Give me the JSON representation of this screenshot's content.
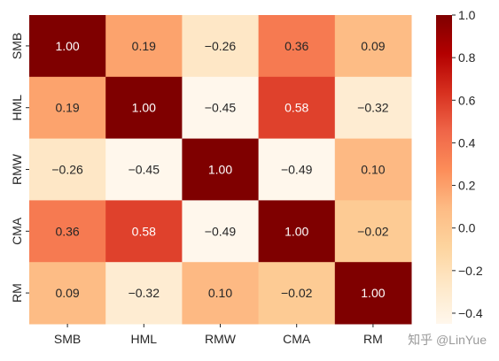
{
  "chart_data": {
    "type": "heatmap",
    "rows": [
      "SMB",
      "HML",
      "RMW",
      "CMA",
      "RM"
    ],
    "columns": [
      "SMB",
      "HML",
      "RMW",
      "CMA",
      "RM"
    ],
    "values": [
      [
        1.0,
        0.19,
        -0.26,
        0.36,
        0.09
      ],
      [
        0.19,
        1.0,
        -0.45,
        0.58,
        -0.32
      ],
      [
        -0.26,
        -0.45,
        1.0,
        -0.49,
        0.1
      ],
      [
        0.36,
        0.58,
        -0.49,
        1.0,
        -0.02
      ],
      [
        0.09,
        -0.32,
        0.1,
        -0.02,
        1.0
      ]
    ],
    "value_labels": [
      [
        "1.00",
        "0.19",
        "−0.26",
        "0.36",
        "0.09"
      ],
      [
        "0.19",
        "1.00",
        "−0.45",
        "0.58",
        "−0.32"
      ],
      [
        "−0.26",
        "−0.45",
        "1.00",
        "−0.49",
        "0.10"
      ],
      [
        "0.36",
        "0.58",
        "−0.49",
        "1.00",
        "−0.02"
      ],
      [
        "0.09",
        "−0.32",
        "0.10",
        "−0.02",
        "1.00"
      ]
    ],
    "colorbar": {
      "min": -0.45,
      "max": 1.0,
      "ticks": [
        1.0,
        0.8,
        0.6,
        0.4,
        0.2,
        0.0,
        -0.2,
        -0.4
      ],
      "tick_labels": [
        "1.0",
        "0.8",
        "0.6",
        "0.4",
        "0.2",
        "0.0",
        "−0.2",
        "−0.4"
      ],
      "colormap": "OrRd",
      "color_stops": [
        "#fff7ec",
        "#fee8c8",
        "#fdd49e",
        "#fdbb84",
        "#fc8d59",
        "#ef6548",
        "#d7301f",
        "#b30000",
        "#7f0000"
      ]
    },
    "title": "",
    "xlabel": "",
    "ylabel": ""
  },
  "watermark": "知乎 @LinYue"
}
